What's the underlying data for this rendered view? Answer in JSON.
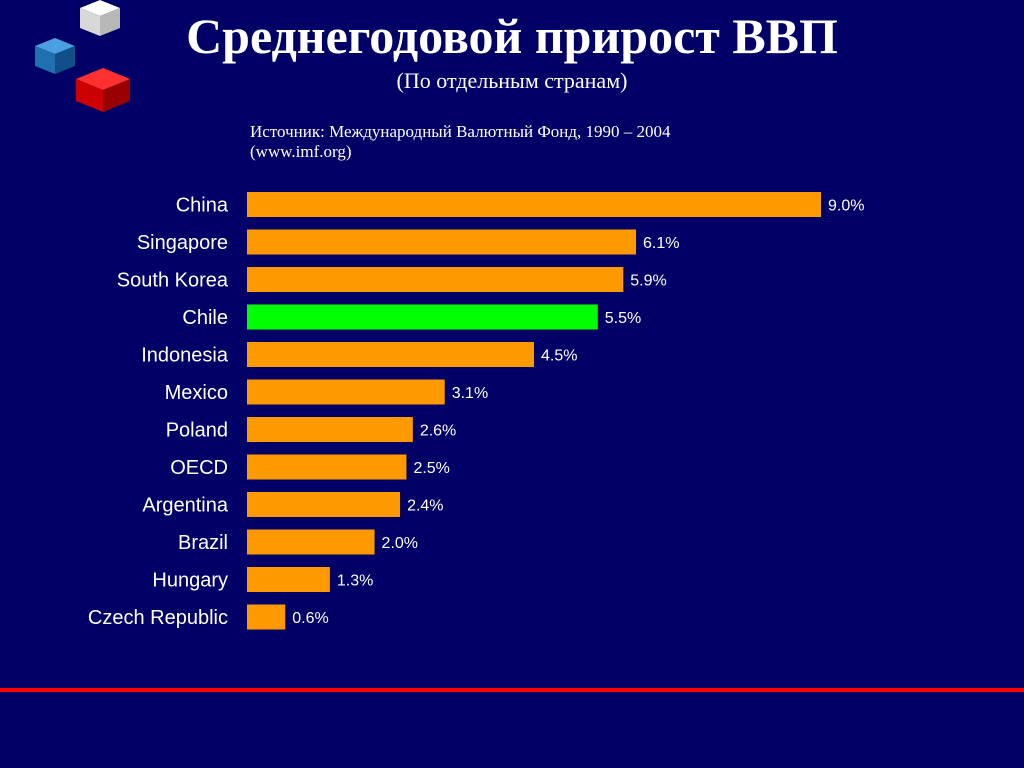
{
  "page": {
    "title": "Среднегодовой прирост ВВП",
    "subtitle": "(По отдельным странам)",
    "source_line1": "Источник: Международный Валютный Фонд, 1990 – 2004",
    "source_line2": "(www.imf.org)"
  },
  "colors": {
    "background": "#000066",
    "bar": "#ff9900",
    "highlight_bar": "#00ff00",
    "rule": "#ff0000",
    "text": "#ffffff"
  },
  "chart_data": {
    "type": "bar",
    "orientation": "horizontal",
    "categories": [
      "China",
      "Singapore",
      "South Korea",
      "Chile",
      "Indonesia",
      "Mexico",
      "Poland",
      "OECD",
      "Argentina",
      "Brazil",
      "Hungary",
      "Czech Republic"
    ],
    "values": [
      9.0,
      6.1,
      5.9,
      5.5,
      4.5,
      3.1,
      2.6,
      2.5,
      2.4,
      2.0,
      1.3,
      0.6
    ],
    "labels": [
      "9.0%",
      "6.1%",
      "5.9%",
      "5.5%",
      "4.5%",
      "3.1%",
      "2.6%",
      "2.5%",
      "2.4%",
      "2.0%",
      "1.3%",
      "0.6%"
    ],
    "highlight": [
      "Chile"
    ],
    "unit": "%",
    "xlim": [
      0,
      9.0
    ],
    "grid": false,
    "legend": "none"
  }
}
